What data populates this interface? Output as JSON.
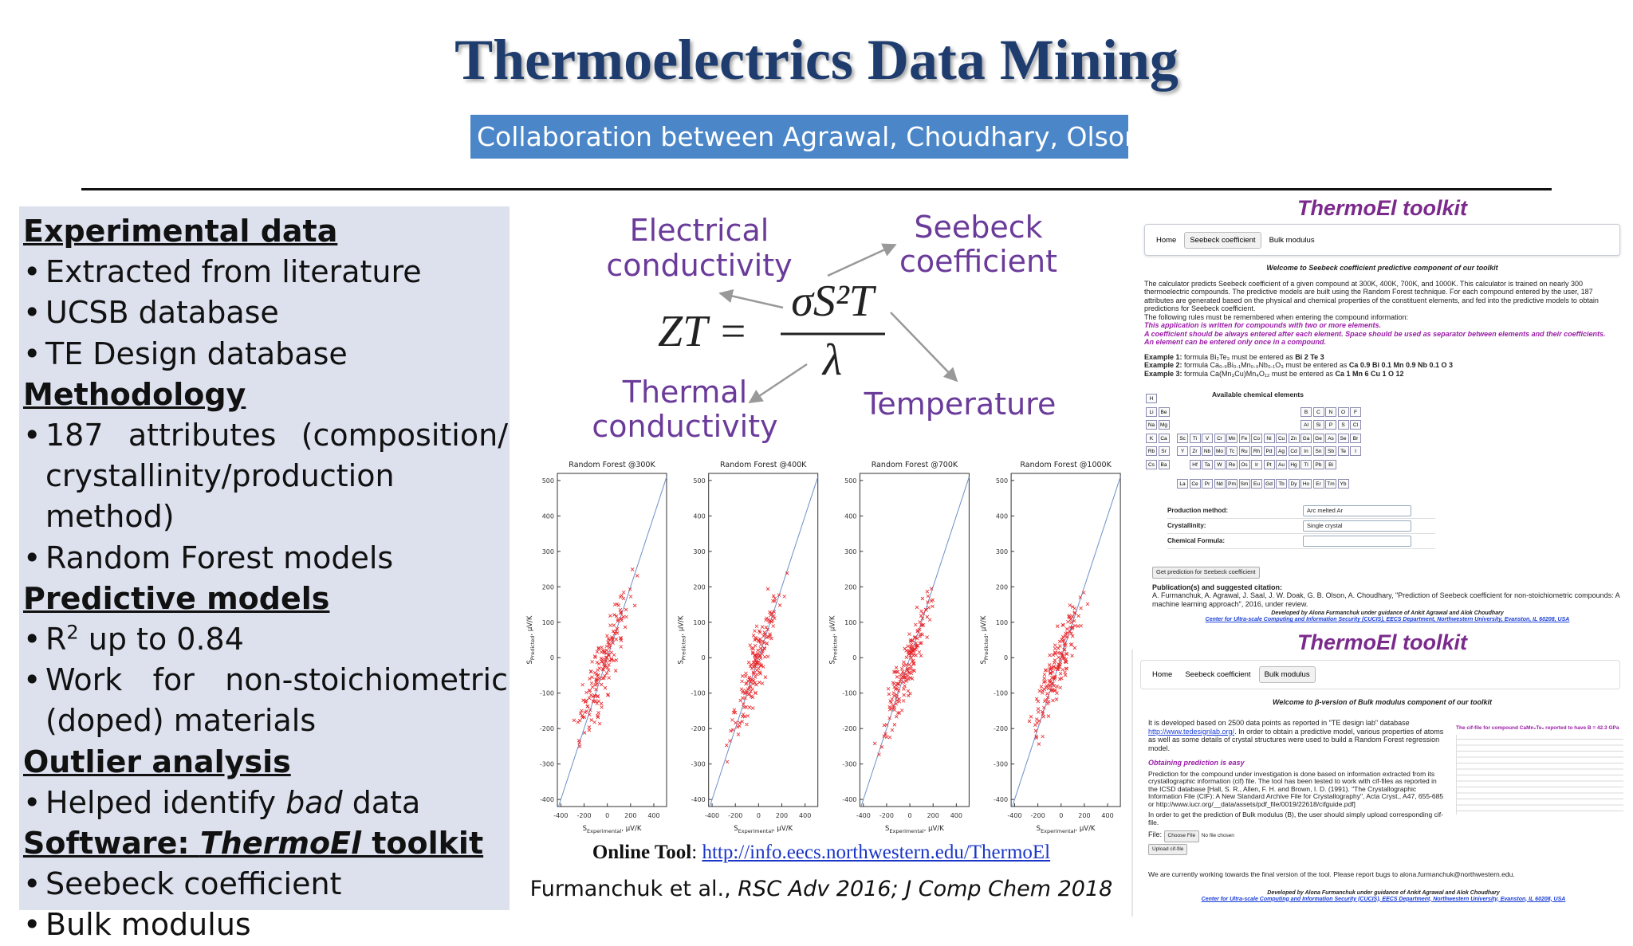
{
  "header": {
    "title": "Thermoelectrics Data Mining",
    "subtitle": "Collaboration between Agrawal, Choudhary, Olson"
  },
  "left_panel": {
    "sections": [
      {
        "heading": [
          "Experimental data"
        ],
        "bullets": [
          [
            "Extracted from literature"
          ],
          [
            "UCSB database"
          ],
          [
            "TE Design database"
          ]
        ]
      },
      {
        "heading": [
          "Methodology"
        ],
        "bullets": [
          [
            "187 attributes (composition/",
            "crystallinity/production method)"
          ],
          [
            "Random Forest models"
          ]
        ]
      },
      {
        "heading": [
          "Predictive models"
        ],
        "bullets": [
          [
            "R",
            "2",
            " up to 0.84"
          ],
          [
            "Work for non-stoichiometric",
            "(doped) materials"
          ]
        ]
      },
      {
        "heading": [
          "Outlier analysis"
        ],
        "bullets": [
          [
            "Helped identify ",
            "bad",
            " data"
          ]
        ]
      },
      {
        "heading": [
          "Software: ",
          "ThermoEl",
          " toolkit"
        ],
        "bullets": [
          [
            "Seebeck coefficient"
          ],
          [
            "Bulk modulus"
          ]
        ]
      }
    ]
  },
  "formula": {
    "lhs": "ZT =",
    "numerator": "σS²T",
    "denominator": "λ",
    "labels": {
      "electrical": [
        "Electrical",
        "conductivity"
      ],
      "seebeck": [
        "Seebeck",
        "coefficient"
      ],
      "thermal": [
        "Thermal",
        "conductivity"
      ],
      "temperature": "Temperature"
    }
  },
  "plots": [
    {
      "title": "Random Forest @300K",
      "ylabel": [
        "S",
        "Predicted",
        ", μV/K"
      ],
      "xlabel": [
        "S",
        "Experimental",
        ", μV/K"
      ],
      "xlim": [
        -430,
        510
      ],
      "ylim": [
        -420,
        520
      ],
      "xticks": [
        -400,
        -200,
        0,
        200,
        400
      ],
      "yticks": [
        -400,
        -300,
        -200,
        -100,
        0,
        100,
        200,
        300,
        400,
        500
      ]
    },
    {
      "title": "Random Forest @400K",
      "ylabel": [
        "S",
        "Predicted",
        ", μV/K"
      ],
      "xlabel": [
        "S",
        "Experimental",
        ", μV/K"
      ],
      "xlim": [
        -430,
        510
      ],
      "ylim": [
        -420,
        520
      ],
      "xticks": [
        -400,
        -200,
        0,
        200,
        400
      ],
      "yticks": [
        -400,
        -300,
        -200,
        -100,
        0,
        100,
        200,
        300,
        400,
        500
      ]
    },
    {
      "title": "Random Forest @700K",
      "ylabel": [
        "S",
        "Predicted",
        ", μV/K"
      ],
      "xlabel": [
        "S",
        "Experimental",
        ", μV/K"
      ],
      "xlim": [
        -430,
        510
      ],
      "ylim": [
        -420,
        520
      ],
      "xticks": [
        -400,
        -200,
        0,
        200,
        400
      ],
      "yticks": [
        -400,
        -300,
        -200,
        -100,
        0,
        100,
        200,
        300,
        400,
        500
      ]
    },
    {
      "title": "Random Forest @1000K",
      "ylabel": [
        "S",
        "Predicted",
        ", μV/K"
      ],
      "xlabel": [
        "S",
        "Experimental",
        ", μV/K"
      ],
      "xlim": [
        -430,
        510
      ],
      "ylim": [
        -420,
        520
      ],
      "xticks": [
        -400,
        -200,
        0,
        200,
        400
      ],
      "yticks": [
        -400,
        -300,
        -200,
        -100,
        0,
        100,
        200,
        300,
        400,
        500
      ]
    }
  ],
  "online_tool": {
    "label": "Online Tool",
    "separator": ": ",
    "url": "http://info.eecs.northwestern.edu/ThermoEl"
  },
  "citation": [
    "Furmanchuk et al., ",
    "RSC Adv 2016; J Comp Chem 2018"
  ],
  "toolkit_seebeck": {
    "title": "ThermoEl toolkit",
    "nav": [
      "Home",
      "Seebeck coefficient",
      "Bulk modulus"
    ],
    "welcome": "Welcome to Seebeck coefficient predictive component of our toolkit",
    "intro": "The calculator predicts Seebeck coefficient of a given compound at 300K, 400K, 700K, and 1000K. This calculator is trained on nearly 300 thermoelectric compounds. The predictive models are built using the Random Forest technique. For each compound entered by the user, 187 attributes are generated based on the physical and chemical properties of the constituent elements, and fed into the predictive models to obtain predictions for Seebeck coefficient.",
    "rules_intro": "The following rules must be remembered when entering the compound information:",
    "rules": [
      "This application is written for compounds with two or more elements.",
      "A coefficient should be always entered after each element. Space should be used as separator between elements and their coefficients.",
      "An element can be entered only once in a compound."
    ],
    "examples": [
      [
        "Example 1:",
        " formula Bi₂Te₃ must be entered as ",
        "Bi 2 Te 3"
      ],
      [
        "Example 2:",
        " formula Ca₀.₉Bi₀.₁Mn₀.₉Nb₀.₁O₃ must be entered as ",
        "Ca 0.9 Bi 0.1 Mn 0.9 Nb 0.1 O 3"
      ],
      [
        "Example 3:",
        " formula Ca(Mn₃Cu)Mn₄O₁₂ must be entered as ",
        "Ca 1 Mn 6 Cu 1 O 12"
      ]
    ],
    "elements_title": "Available chemical elements",
    "periodic": [
      [
        "H",
        null,
        null,
        null,
        null,
        null,
        null,
        null,
        null,
        null,
        null,
        null,
        null,
        null,
        null,
        null,
        null
      ],
      [
        "Li",
        "Be",
        null,
        null,
        null,
        null,
        null,
        null,
        null,
        null,
        null,
        null,
        "B",
        "C",
        "N",
        "O",
        "F"
      ],
      [
        "Na",
        "Mg",
        null,
        null,
        null,
        null,
        null,
        null,
        null,
        null,
        null,
        null,
        "Al",
        "Si",
        "P",
        "S",
        "Cl"
      ],
      [
        "K",
        "Ca",
        "Sc",
        "Ti",
        "V",
        "Cr",
        "Mn",
        "Fe",
        "Co",
        "Ni",
        "Cu",
        "Zn",
        "Ga",
        "Ge",
        "As",
        "Se",
        "Br"
      ],
      [
        "Rb",
        "Sr",
        "Y",
        "Zr",
        "Nb",
        "Mo",
        "Tc",
        "Ru",
        "Rh",
        "Pd",
        "Ag",
        "Cd",
        "In",
        "Sn",
        "Sb",
        "Te",
        "I"
      ],
      [
        "Cs",
        "Ba",
        null,
        "Hf",
        "Ta",
        "W",
        "Re",
        "Os",
        "Ir",
        "Pt",
        "Au",
        "Hg",
        "Tl",
        "Pb",
        "Bi",
        null,
        null
      ],
      [
        null,
        null,
        "La",
        "Ce",
        "Pr",
        "Nd",
        "Pm",
        "Sm",
        "Eu",
        "Gd",
        "Tb",
        "Dy",
        "Ho",
        "Er",
        "Tm",
        "Yb",
        null
      ]
    ],
    "form": [
      {
        "label": "Production method:",
        "value": "Arc melted Ar"
      },
      {
        "label": "Crystallinity:",
        "value": "Single crystal"
      },
      {
        "label": "Chemical Formula:"
      }
    ],
    "button": "Get prediction for Seebeck coefficient",
    "publication_heading": "Publication(s) and suggested citation:",
    "publication": "A. Furmanchuk, A. Agrawal, J. Saal, J. W. Doak, G. B. Olson, A. Choudhary, \"Prediction of Seebeck coefficient for non-stoichiometric compounds: A machine learning approach\", 2016, under review.",
    "credit": "Developed by Alona Furmanchuk under guidance of Ankit Agrawal and Alok Choudhary",
    "credit_link": "Center for Ultra-scale Computing and Information Security (CUCIS), EECS Department, Northwestern University, Evanston, IL 60208, USA"
  },
  "toolkit_bulk": {
    "title": "ThermoEl toolkit",
    "nav": [
      "Home",
      "Seebeck coefficient",
      "Bulk modulus"
    ],
    "welcome": "Welcome to β-version of Bulk modulus component of our toolkit",
    "intro": [
      "It is developed based on 2500 data points as reported in \"TE design lab\" database ",
      "http://www.tedesignlab.org/",
      ". In order to obtain a predictive model, various properties of atoms as well as some details of crystal structures were used to build a Random Forest regression model."
    ],
    "cif_heading": "The cif-file for compound CaMn₂Te₂ reported to have B = 42.3 GPa",
    "howto_heading": "Obtaining prediction is easy",
    "howto": "Prediction for the compound under investigation is done based on information extracted from its crystallographic information (cif) file. The tool has been tested to work with cif-files as reported in the ICSD database [Hall, S. R., Allen, F. H. and Brown, I. D. (1991). \"The Crystallographic Information File (CIF): A New Standard Archive File for Crystallography\", Acta Cryst., A47, 655-685 or http://www.iucr.org/__data/assets/pdf_file/0019/22618/cifguide.pdf]",
    "upload_note": "In order to get the prediction of Bulk modulus (B), the user should simply upload corresponding cif-file.",
    "file_label": "File:",
    "choose": "Choose File",
    "no_file": "No file chosen",
    "upload": "Upload cif-file",
    "bugs": "We are currently working towards the final version of the tool. Please report bugs to alona.furmanchuk@northwestern.edu.",
    "credit": "Developed by Alona Furmanchuk under guidance of Ankit Agrawal and Alok Choudhary",
    "credit_link": "Center for Ultra-scale Computing and Information Security (CUCIS), EECS Department, Northwestern University, Evanston, IL 60208, USA"
  }
}
